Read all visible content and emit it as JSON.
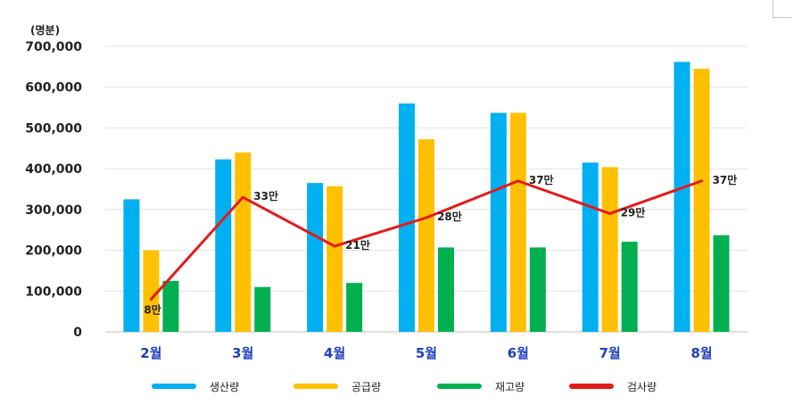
{
  "chart_data": {
    "type": "bar",
    "unit_label": "(명분)",
    "categories": [
      "2월",
      "3월",
      "4월",
      "5월",
      "6월",
      "7월",
      "8월"
    ],
    "ylim": [
      0,
      700000
    ],
    "yticks": [
      0,
      100000,
      200000,
      300000,
      400000,
      500000,
      600000,
      700000
    ],
    "ytick_labels": [
      "0",
      "100,000",
      "200,000",
      "300,000",
      "400,000",
      "500,000",
      "600,000",
      "700,000"
    ],
    "grid": true,
    "legend_position": "bottom",
    "series": [
      {
        "name": "생산량",
        "kind": "bar",
        "color": "#00B0F0",
        "values": [
          325000,
          423000,
          365000,
          560000,
          537000,
          415000,
          662000
        ]
      },
      {
        "name": "공급량",
        "kind": "bar",
        "color": "#FFC000",
        "values": [
          200000,
          440000,
          357000,
          472000,
          537000,
          404000,
          645000
        ]
      },
      {
        "name": "재고량",
        "kind": "bar",
        "color": "#00B050",
        "values": [
          125000,
          110000,
          120000,
          207000,
          207000,
          221000,
          237000
        ]
      },
      {
        "name": "검사량",
        "kind": "line",
        "color": "#E31B1B",
        "values": [
          80000,
          330000,
          210000,
          280000,
          370000,
          290000,
          370000
        ],
        "labels": [
          "8만",
          "33만",
          "21만",
          "28만",
          "37만",
          "29만",
          "37만"
        ]
      }
    ]
  }
}
